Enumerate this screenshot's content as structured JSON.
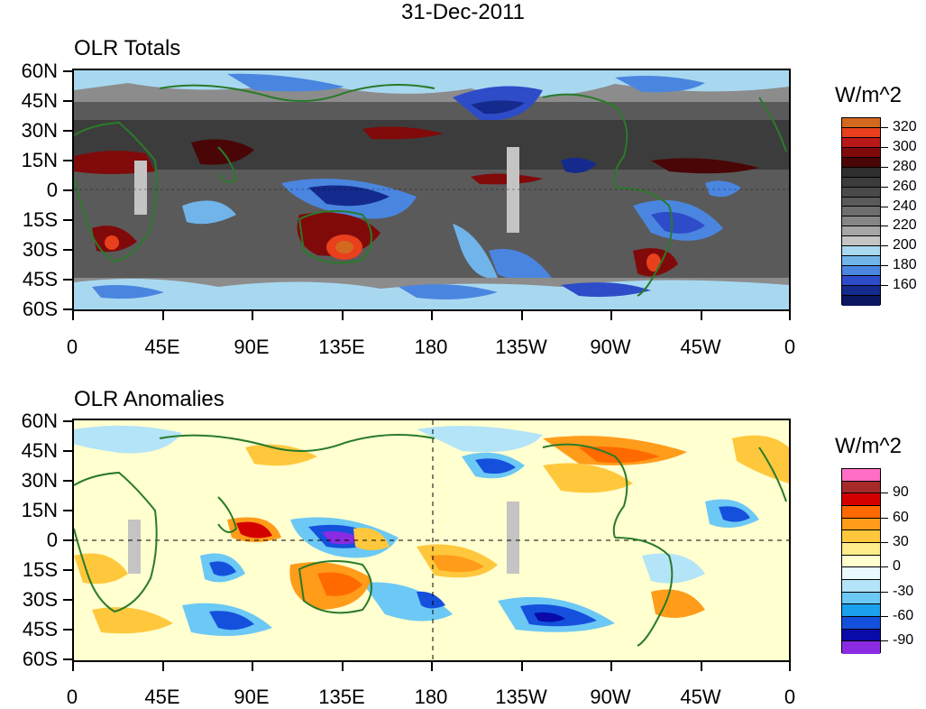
{
  "title": "31-Dec-2011",
  "panels": [
    {
      "name": "totals",
      "title": "OLR Totals",
      "unit": "W/m^2",
      "lat_labels": [
        "60N",
        "45N",
        "30N",
        "15N",
        "0",
        "15S",
        "30S",
        "45S",
        "60S"
      ],
      "lon_labels": [
        "0",
        "45E",
        "90E",
        "135E",
        "180",
        "135W",
        "90W",
        "45W",
        "0"
      ],
      "legend_labels": [
        "320",
        "300",
        "280",
        "260",
        "240",
        "220",
        "200",
        "180",
        "160"
      ],
      "legend_colors": [
        "#d2691e",
        "#e8401c",
        "#b81818",
        "#800a0a",
        "#4a0606",
        "#2e2e2e",
        "#3c3c3c",
        "#4a4a4a",
        "#5a5a5a",
        "#6e6e6e",
        "#868686",
        "#a6a6a6",
        "#c4c4c4",
        "#a8d8f0",
        "#70b4ea",
        "#4a86e0",
        "#2e4cc8",
        "#142a8c",
        "#0a1660"
      ]
    },
    {
      "name": "anomalies",
      "title": "OLR Anomalies",
      "unit": "W/m^2",
      "lat_labels": [
        "60N",
        "45N",
        "30N",
        "15N",
        "0",
        "15S",
        "30S",
        "45S",
        "60S"
      ],
      "lon_labels": [
        "0",
        "45E",
        "90E",
        "135E",
        "180",
        "135W",
        "90W",
        "45W",
        "0"
      ],
      "legend_labels": [
        "90",
        "60",
        "30",
        "0",
        "-30",
        "-60",
        "-90"
      ],
      "legend_colors": [
        "#ff6ec4",
        "#a52a2a",
        "#d40000",
        "#ff6a00",
        "#ff9c1a",
        "#ffc83c",
        "#ffec8a",
        "#ffffd0",
        "#e8f8ff",
        "#b4e4f8",
        "#6cc8f4",
        "#1aa0ec",
        "#1450dc",
        "#0a0aa8",
        "#8a2be2"
      ]
    }
  ]
}
